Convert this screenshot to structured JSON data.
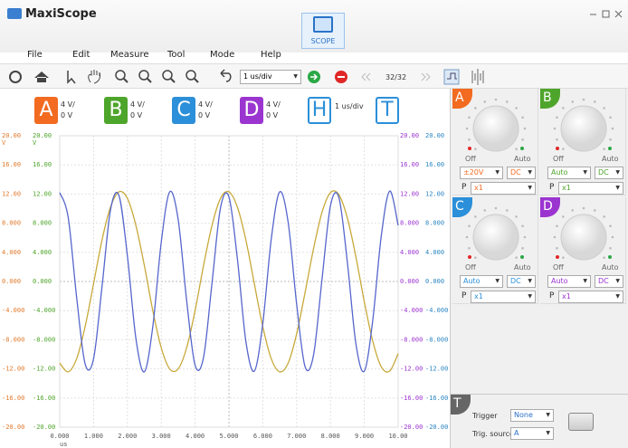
{
  "window": {
    "title": "MaxiScope"
  },
  "mode_button": {
    "label": "SCOPE"
  },
  "menu": [
    "File",
    "Edit",
    "Measure",
    "Tool",
    "Mode",
    "Help"
  ],
  "toolbar": {
    "timebase": "1 us/div",
    "frames": "32/32"
  },
  "channels": [
    {
      "letter": "A",
      "color": "#f26b21",
      "scale": "4 V/",
      "offset": "0 V",
      "knob_off": "Off",
      "knob_auto": "Auto",
      "range": "±20V",
      "coupling": "DC",
      "probe_label": "P",
      "probe": "x1"
    },
    {
      "letter": "B",
      "color": "#4ea52b",
      "scale": "4 V/",
      "offset": "0 V",
      "knob_off": "Off",
      "knob_auto": "Auto",
      "range": "Auto",
      "coupling": "DC",
      "probe_label": "P",
      "probe": "x1"
    },
    {
      "letter": "C",
      "color": "#2b8fd9",
      "scale": "4 V/",
      "offset": "0 V",
      "knob_off": "Off",
      "knob_auto": "Auto",
      "range": "Auto",
      "coupling": "DC",
      "probe_label": "P",
      "probe": "x1"
    },
    {
      "letter": "D",
      "color": "#9b35d0",
      "scale": "4 V/",
      "offset": "0 V",
      "knob_off": "Off",
      "knob_auto": "Auto",
      "range": "Auto",
      "coupling": "DC",
      "probe_label": "P",
      "probe": "x1"
    }
  ],
  "timebase_badge": {
    "letter": "H",
    "label": "1 us/div"
  },
  "trigger": {
    "letter": "T",
    "trigger_label": "Trigger",
    "trigger_value": "None",
    "source_label": "Trig. source",
    "source_value": "A"
  },
  "chart_data": {
    "type": "line",
    "x": [
      0,
      0.25,
      0.5,
      0.75,
      1,
      1.25,
      1.5,
      1.75,
      2,
      2.25,
      2.5,
      2.75,
      3,
      3.25,
      3.5,
      3.75,
      4,
      4.25,
      4.5,
      4.75,
      5,
      5.25,
      5.5,
      5.75,
      6,
      6.25,
      6.5,
      6.75,
      7,
      7.25,
      7.5,
      7.75,
      8,
      8.25,
      8.5,
      8.75,
      9,
      9.25,
      9.5,
      9.75,
      10
    ],
    "series": [
      {
        "color": "#c8a93a",
        "values": [
          -11.2,
          -12.4,
          -10.6,
          -6.2,
          -0.3,
          5.7,
          10.2,
          12.3,
          11.4,
          7.7,
          2.2,
          -4.0,
          -9.1,
          -12.0,
          -12.0,
          -9.1,
          -4.0,
          2.2,
          7.7,
          11.4,
          12.3,
          10.2,
          5.7,
          -0.3,
          -6.2,
          -10.6,
          -12.4,
          -11.2,
          -7.2,
          -1.5,
          4.5,
          9.5,
          12.2,
          11.9,
          8.7,
          3.4,
          -2.8,
          -8.2,
          -11.7,
          -12.3,
          -9.9
        ]
      },
      {
        "color": "#5566cc",
        "values": [
          12.2,
          8.8,
          -2.2,
          -11.3,
          -10.6,
          -0.7,
          9.8,
          11.8,
          3.5,
          -7.8,
          -12.4,
          -6.2,
          5.4,
          12.3,
          8.5,
          -2.6,
          -11.5,
          -10.4,
          -0.2,
          10.1,
          11.6,
          3.1,
          -8.2,
          -12.3,
          -5.8,
          5.8,
          12.3,
          8.1,
          -3.1,
          -11.7,
          -10.1,
          0.3,
          10.4,
          11.5,
          2.6,
          -8.5,
          -12.3,
          -5.3,
          6.2,
          12.4,
          7.7
        ]
      }
    ],
    "xlim": [
      0,
      10
    ],
    "ylim": [
      -20,
      20
    ],
    "xticks": [
      {
        "value": 0,
        "label": "0.000"
      },
      {
        "value": 1,
        "label": "1.000"
      },
      {
        "value": 2,
        "label": "2.000"
      },
      {
        "value": 3,
        "label": "3.000"
      },
      {
        "value": 4,
        "label": "4.000"
      },
      {
        "value": 5,
        "label": "5.000"
      },
      {
        "value": 6,
        "label": "6.000"
      },
      {
        "value": 7,
        "label": "7.000"
      },
      {
        "value": 8,
        "label": "8.000"
      },
      {
        "value": 9,
        "label": "9.000"
      },
      {
        "value": 10,
        "label": "10.00"
      }
    ],
    "yticks": [
      {
        "value": 20,
        "label": "20.00"
      },
      {
        "value": 16,
        "label": "16.00"
      },
      {
        "value": 12,
        "label": "12.00"
      },
      {
        "value": 8,
        "label": "8.000"
      },
      {
        "value": 4,
        "label": "4.000"
      },
      {
        "value": 0,
        "label": "0.000"
      },
      {
        "value": -4,
        "label": "-4.000"
      },
      {
        "value": -8,
        "label": "-8.000"
      },
      {
        "value": -12,
        "label": "-12.00"
      },
      {
        "value": -16,
        "label": "-16.00"
      },
      {
        "value": -20,
        "label": "-20.00"
      }
    ],
    "y_label_colors": [
      "#e07a2e",
      "#4ea52b",
      "#9b35d0",
      "#2b86c1"
    ],
    "xlabel": "us",
    "ylabel": "V",
    "grid": true
  }
}
